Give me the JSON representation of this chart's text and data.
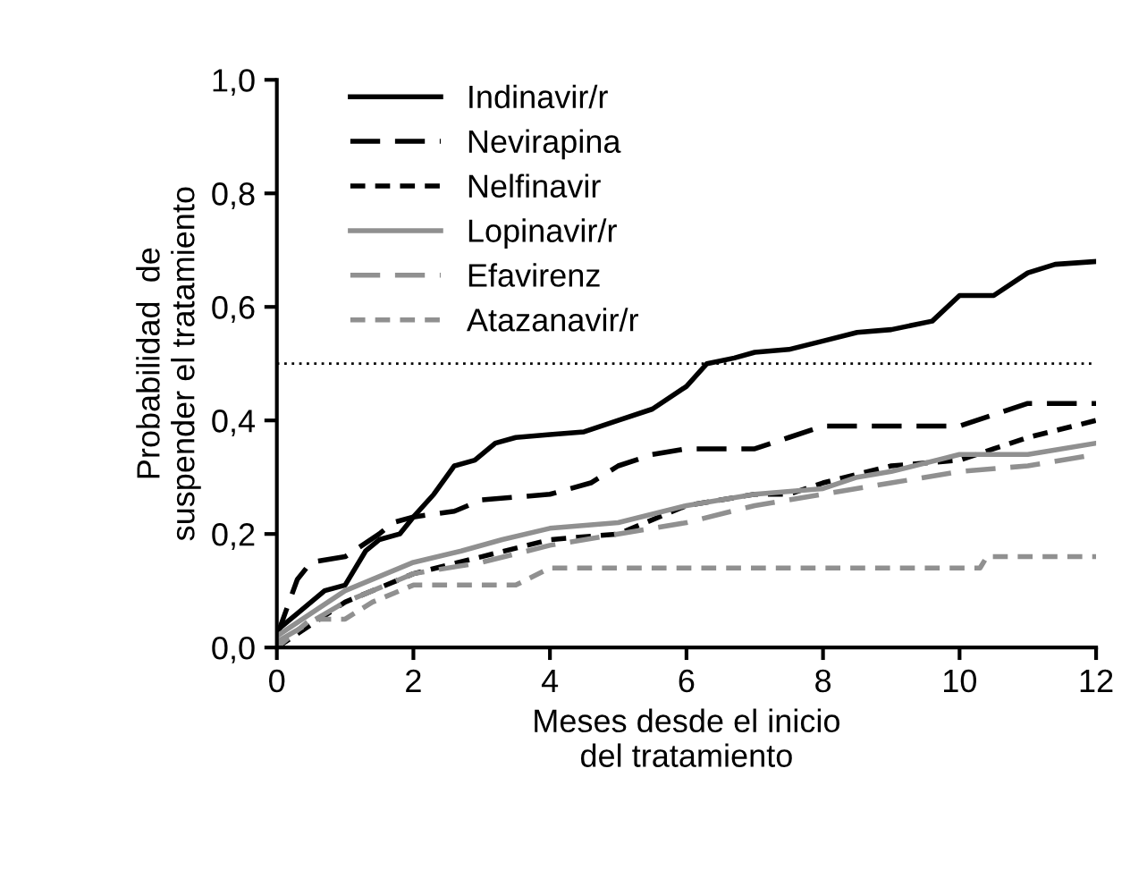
{
  "chart_data": {
    "type": "line",
    "xlabel": "Meses desde el inicio\ndel tratamiento",
    "ylabel": "Probabilidad  de\nsuspender el tratamiento",
    "xlim": [
      0,
      12
    ],
    "xticks": [
      0,
      2,
      4,
      6,
      8,
      10,
      12
    ],
    "ylim": [
      0,
      1.0
    ],
    "yticks": [
      {
        "value": 0,
        "label": "0,0"
      },
      {
        "value": 0.2,
        "label": "0,2"
      },
      {
        "value": 0.4,
        "label": "0,4"
      },
      {
        "value": 0.6,
        "label": "0,6"
      },
      {
        "value": 0.8,
        "label": "0,8"
      },
      {
        "value": 1.0,
        "label": "1,0"
      }
    ],
    "grid": false,
    "legend": "top left",
    "marker": "none",
    "ref_lines": [
      {
        "axis": "y",
        "value": 0.5,
        "color": "#000000",
        "line_style": "dotted"
      }
    ],
    "series": [
      {
        "name": "Indinavir/r",
        "color": "#000000",
        "line_style": "solid",
        "x": [
          0,
          0.3,
          0.7,
          1.0,
          1.3,
          1.5,
          1.8,
          2.0,
          2.3,
          2.6,
          2.9,
          3.2,
          3.5,
          4.0,
          4.5,
          5.0,
          5.5,
          6.0,
          6.3,
          6.7,
          7.0,
          7.5,
          8.0,
          8.5,
          9.0,
          9.6,
          10.0,
          10.5,
          11.0,
          11.4,
          12.0
        ],
        "values": [
          0.03,
          0.06,
          0.1,
          0.11,
          0.17,
          0.19,
          0.2,
          0.23,
          0.27,
          0.32,
          0.33,
          0.36,
          0.37,
          0.375,
          0.38,
          0.4,
          0.42,
          0.46,
          0.5,
          0.51,
          0.52,
          0.525,
          0.54,
          0.555,
          0.56,
          0.575,
          0.62,
          0.62,
          0.66,
          0.675,
          0.68
        ]
      },
      {
        "name": "Nevirapina",
        "color": "#000000",
        "line_style": "dashed",
        "x": [
          0,
          0.3,
          0.5,
          1.0,
          1.5,
          1.7,
          2.0,
          2.6,
          3.0,
          4.0,
          4.6,
          5.0,
          5.5,
          6.0,
          7.0,
          7.5,
          8.0,
          10.0,
          10.5,
          11.0,
          12.0
        ],
        "values": [
          0.02,
          0.12,
          0.15,
          0.16,
          0.2,
          0.22,
          0.23,
          0.24,
          0.26,
          0.27,
          0.29,
          0.32,
          0.34,
          0.35,
          0.35,
          0.37,
          0.39,
          0.39,
          0.41,
          0.43,
          0.43
        ]
      },
      {
        "name": "Nelfinavir",
        "color": "#000000",
        "line_style": "dotted",
        "x": [
          0,
          1,
          2,
          3,
          4,
          5,
          6,
          7,
          7.5,
          8,
          9,
          10,
          10.5,
          11,
          12
        ],
        "values": [
          0.0,
          0.08,
          0.13,
          0.16,
          0.19,
          0.2,
          0.25,
          0.27,
          0.27,
          0.29,
          0.32,
          0.33,
          0.35,
          0.37,
          0.4
        ]
      },
      {
        "name": "Lopinavir/r",
        "color": "#909090",
        "line_style": "solid",
        "x": [
          0,
          1,
          2,
          2.7,
          3.3,
          4,
          5,
          6,
          7,
          8,
          8.5,
          9,
          10,
          11,
          12
        ],
        "values": [
          0.02,
          0.1,
          0.15,
          0.17,
          0.19,
          0.21,
          0.22,
          0.25,
          0.27,
          0.28,
          0.3,
          0.31,
          0.34,
          0.34,
          0.36
        ]
      },
      {
        "name": "Efavirenz",
        "color": "#909090",
        "line_style": "dashed",
        "x": [
          0,
          1,
          2,
          3,
          4,
          5,
          6,
          7,
          8,
          9,
          10,
          11,
          12
        ],
        "values": [
          0.01,
          0.08,
          0.13,
          0.15,
          0.18,
          0.2,
          0.22,
          0.25,
          0.27,
          0.29,
          0.31,
          0.32,
          0.34
        ]
      },
      {
        "name": "Atazanavir/r",
        "color": "#909090",
        "line_style": "dotted",
        "x": [
          0,
          0.5,
          1.0,
          1.4,
          2.0,
          3.5,
          4.0,
          10.3,
          10.4,
          12.0
        ],
        "values": [
          0.0,
          0.05,
          0.05,
          0.08,
          0.11,
          0.11,
          0.14,
          0.14,
          0.16,
          0.16
        ]
      }
    ]
  }
}
